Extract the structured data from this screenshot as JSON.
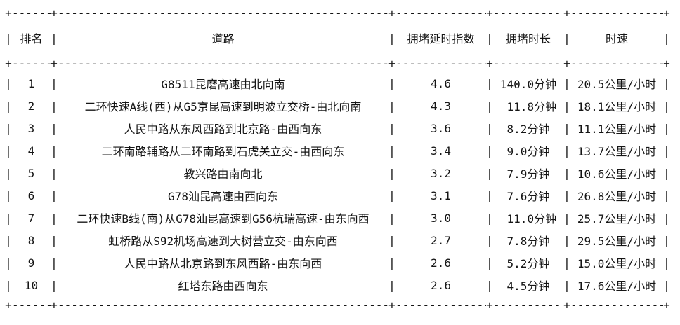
{
  "table": {
    "headers": [
      "排名",
      "道路",
      "拥堵延时指数",
      "拥堵时长",
      "时速"
    ],
    "column_keys": [
      "rank",
      "road",
      "delay_index",
      "duration",
      "speed"
    ],
    "rows": [
      {
        "rank": "1",
        "road": "G8511昆磨高速由北向南",
        "delay_index": "4.6",
        "duration": "140.0分钟",
        "speed": "20.5公里/小时"
      },
      {
        "rank": "2",
        "road": "二环快速A线(西)从G5京昆高速到明波立交桥-由北向南",
        "delay_index": "4.3",
        "duration": "11.8分钟",
        "speed": "18.1公里/小时"
      },
      {
        "rank": "3",
        "road": "人民中路从东风西路到北京路-由西向东",
        "delay_index": "3.6",
        "duration": "8.2分钟",
        "speed": "11.1公里/小时"
      },
      {
        "rank": "4",
        "road": "二环南路辅路从二环南路到石虎关立交-由西向东",
        "delay_index": "3.4",
        "duration": "9.0分钟",
        "speed": "13.7公里/小时"
      },
      {
        "rank": "5",
        "road": "教兴路由南向北",
        "delay_index": "3.2",
        "duration": "7.9分钟",
        "speed": "10.6公里/小时"
      },
      {
        "rank": "6",
        "road": "G78汕昆高速由西向东",
        "delay_index": "3.1",
        "duration": "7.6分钟",
        "speed": "26.8公里/小时"
      },
      {
        "rank": "7",
        "road": "二环快速B线(南)从G78汕昆高速到G56杭瑞高速-由东向西",
        "delay_index": "3.0",
        "duration": "11.0分钟",
        "speed": "25.7公里/小时"
      },
      {
        "rank": "8",
        "road": "虹桥路从S92机场高速到大树营立交-由东向西",
        "delay_index": "2.7",
        "duration": "7.8分钟",
        "speed": "29.5公里/小时"
      },
      {
        "rank": "9",
        "road": "人民中路从北京路到东风西路-由东向西",
        "delay_index": "2.6",
        "duration": "5.2分钟",
        "speed": "15.0公里/小时"
      },
      {
        "rank": "10",
        "road": "红塔东路由西向东",
        "delay_index": "2.6",
        "duration": "4.5分钟",
        "speed": "17.6公里/小时"
      }
    ]
  },
  "colors": {
    "text": "#151515",
    "background": "#ffffff"
  }
}
